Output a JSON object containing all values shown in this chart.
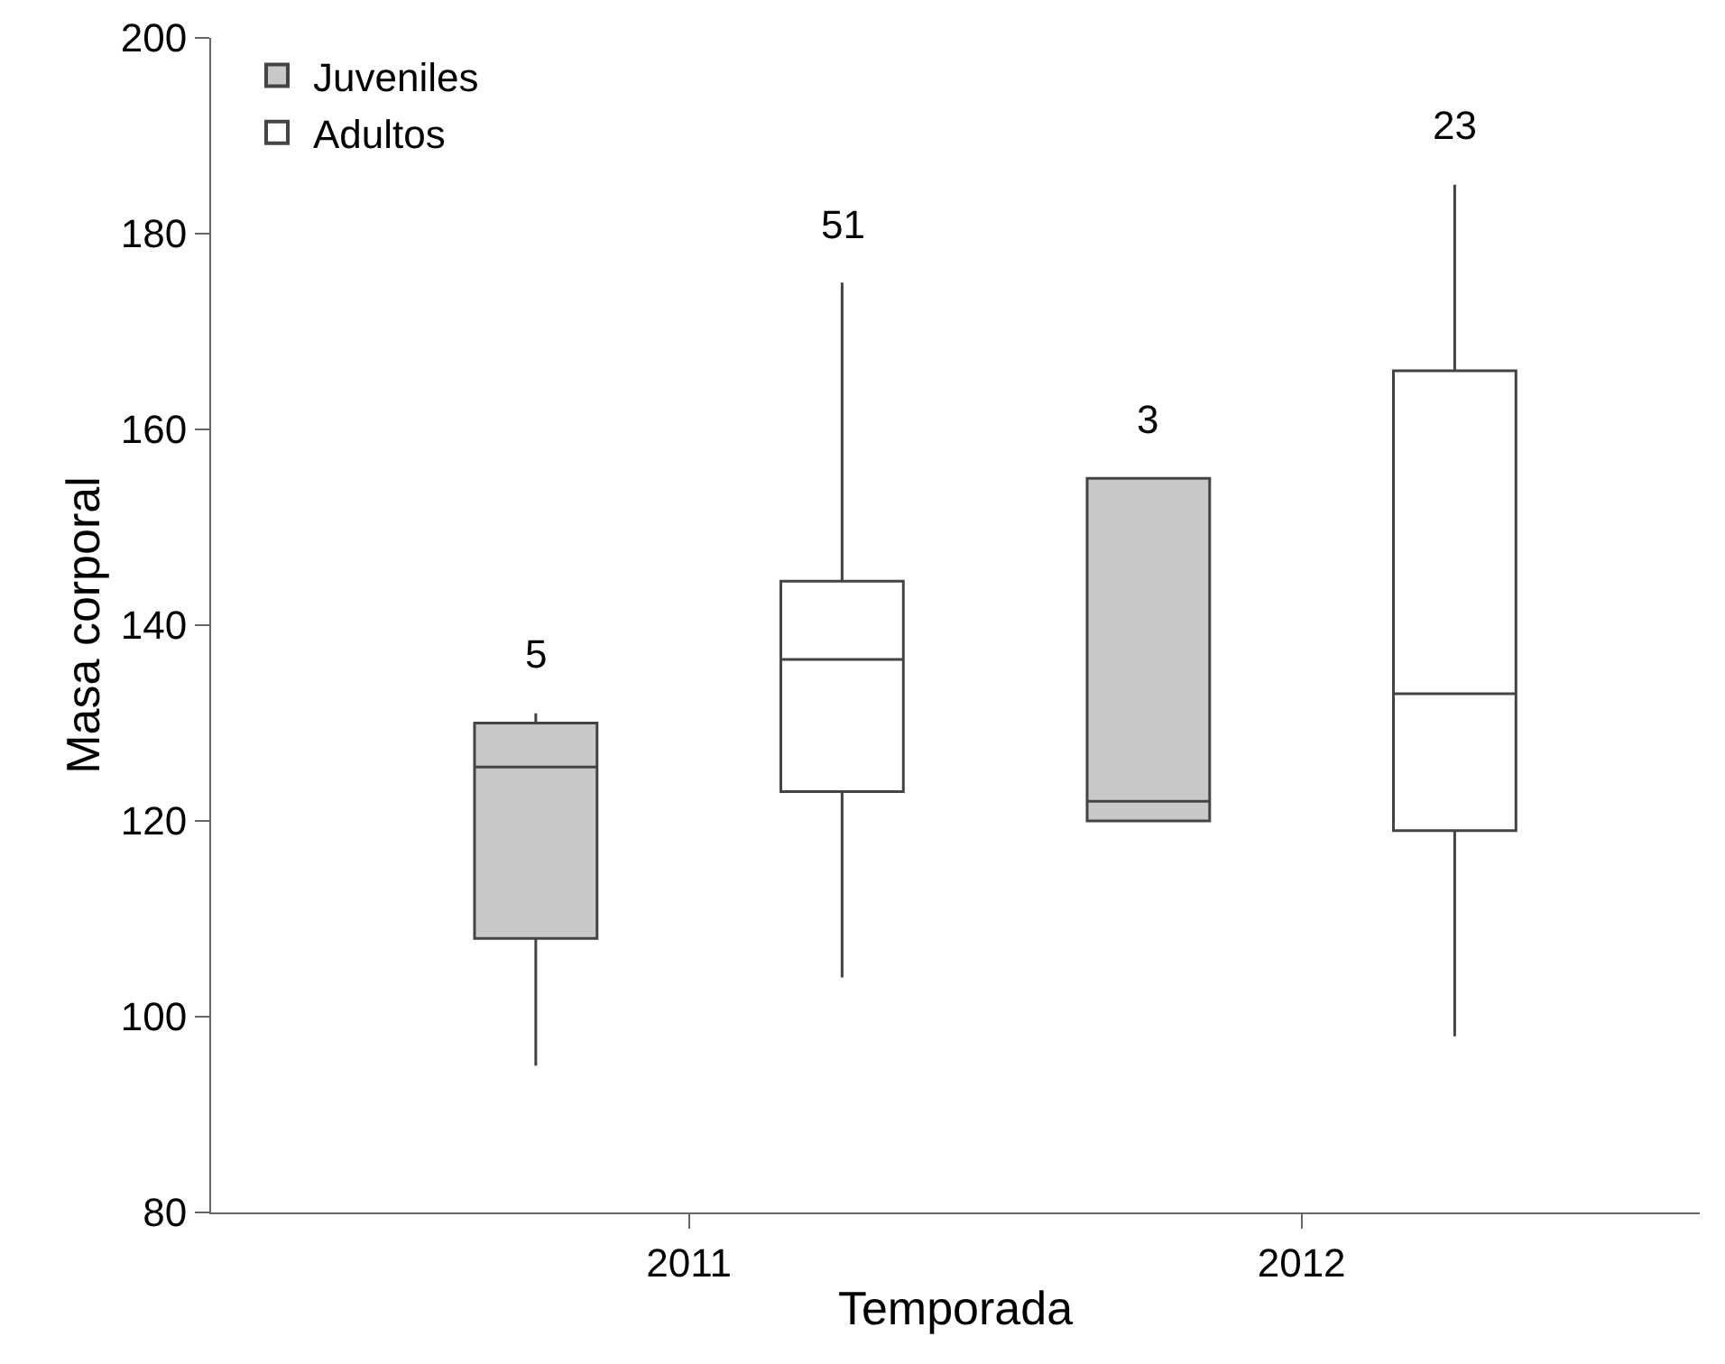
{
  "chart_data": {
    "type": "box",
    "xlabel": "Temporada",
    "ylabel": "Masa corporal",
    "categories": [
      "2011",
      "2012"
    ],
    "series": [
      {
        "name": "Juveniles",
        "color": "#c8c8c8",
        "boxes": [
          {
            "low": 95,
            "q1": 108,
            "median": 125.5,
            "q3": 130,
            "high": 131
          },
          {
            "low": 120,
            "q1": 120,
            "median": 122,
            "q3": 155,
            "high": 155
          }
        ]
      },
      {
        "name": "Adultos",
        "color": "#ffffff",
        "boxes": [
          {
            "low": 104,
            "q1": 123,
            "median": 136.5,
            "q3": 144.5,
            "high": 175
          },
          {
            "low": 98,
            "q1": 119,
            "median": 133,
            "q3": 166,
            "high": 185
          }
        ]
      }
    ],
    "ylim": [
      80,
      200
    ],
    "yticks": [
      80,
      100,
      120,
      140,
      160,
      180,
      200
    ],
    "grid": false,
    "legend": "top left",
    "annotations": [
      "5",
      "51",
      "3",
      "23"
    ]
  }
}
